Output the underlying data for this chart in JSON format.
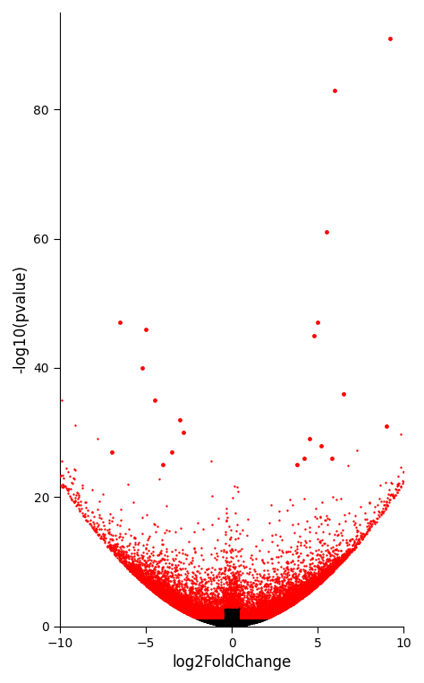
{
  "title": "",
  "xlabel": "log2FoldChange",
  "ylabel": "-log10(pvalue)",
  "xlim": [
    -10,
    10
  ],
  "ylim": [
    0,
    95
  ],
  "xticks": [
    -10,
    -5,
    0,
    5,
    10
  ],
  "yticks": [
    0,
    20,
    40,
    60,
    80
  ],
  "background_color": "#ffffff",
  "axis_color": "#000000",
  "red_color": "#ff0000",
  "black_color": "#000000",
  "dot_size": 3,
  "seed": 42,
  "pval_threshold": 1.3,
  "n_total": 20000,
  "special_points_red": [
    [
      9.2,
      91
    ],
    [
      6.0,
      83
    ],
    [
      5.5,
      61
    ],
    [
      5.0,
      47
    ],
    [
      4.8,
      45
    ],
    [
      6.5,
      36
    ],
    [
      9.0,
      31
    ],
    [
      4.5,
      29
    ],
    [
      -6.5,
      47
    ],
    [
      -7.0,
      27
    ],
    [
      -5.0,
      46
    ],
    [
      -5.2,
      40
    ],
    [
      -4.5,
      35
    ],
    [
      -3.0,
      32
    ],
    [
      -2.8,
      30
    ],
    [
      5.2,
      28
    ],
    [
      5.8,
      26
    ],
    [
      4.2,
      26
    ],
    [
      3.8,
      25
    ],
    [
      -3.5,
      27
    ],
    [
      -4.0,
      25
    ]
  ]
}
